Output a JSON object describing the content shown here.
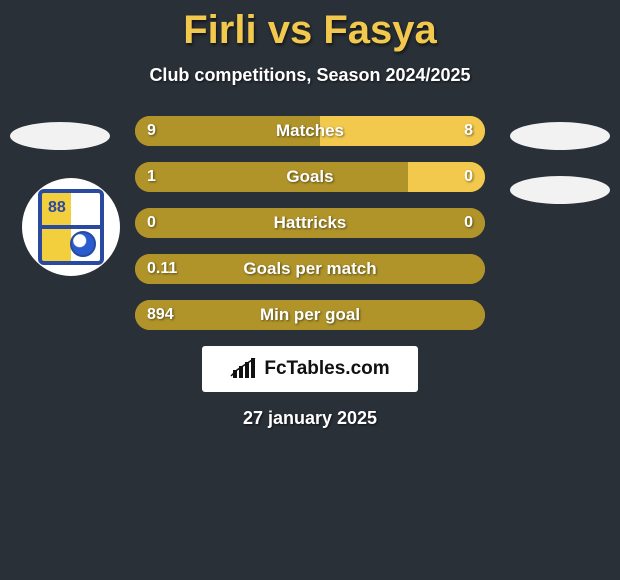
{
  "title": {
    "left": "Firli",
    "vs": "vs",
    "right": "Fasya",
    "color": "#f2c94c"
  },
  "subtitle": "Club competitions, Season 2024/2025",
  "date": "27 january 2025",
  "brand": "FcTables.com",
  "badge_number": "88",
  "colors": {
    "left_bar": "#b0942a",
    "right_bar": "#f2c94c",
    "row_bg": "#b0942a",
    "background": "#2a3038",
    "title": "#f2c94c",
    "text": "#ffffff"
  },
  "bars": [
    {
      "label": "Matches",
      "left_value": "9",
      "right_value": "8",
      "left_pct": 52.9,
      "right_pct": 47.1,
      "left_display": "9",
      "right_display": "8"
    },
    {
      "label": "Goals",
      "left_value": "1",
      "right_value": "0",
      "left_pct": 78.0,
      "right_pct": 22.0,
      "left_display": "1",
      "right_display": "0"
    },
    {
      "label": "Hattricks",
      "left_value": "0",
      "right_value": "0",
      "left_pct": 100,
      "right_pct": 0,
      "left_display": "0",
      "right_display": "0"
    },
    {
      "label": "Goals per match",
      "left_value": "0.11",
      "right_value": "",
      "left_pct": 100,
      "right_pct": 0,
      "left_display": "0.11",
      "right_display": ""
    },
    {
      "label": "Min per goal",
      "left_value": "894",
      "right_value": "",
      "left_pct": 100,
      "right_pct": 0,
      "left_display": "894",
      "right_display": ""
    }
  ]
}
